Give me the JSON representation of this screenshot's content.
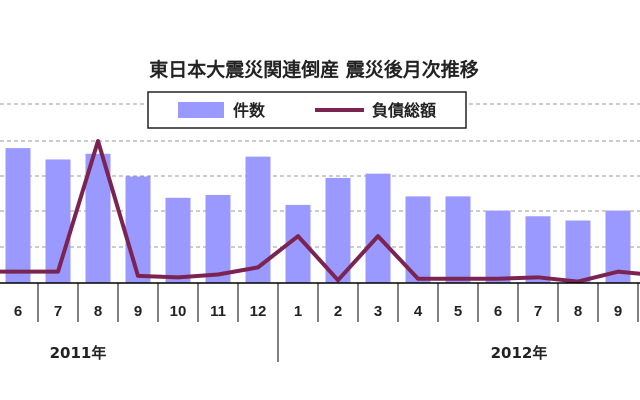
{
  "chart_data": {
    "type": "bar",
    "title": "東日本大震災関連倒産 震災後月次推移",
    "categories": [
      "6",
      "7",
      "8",
      "9",
      "10",
      "11",
      "12",
      "1",
      "2",
      "3",
      "4",
      "5",
      "6",
      "7",
      "8",
      "9"
    ],
    "year_groups": [
      {
        "label": "2011年",
        "start": 0,
        "count": 7
      },
      {
        "label": "2012年",
        "start": 7,
        "count": 9
      }
    ],
    "series": [
      {
        "name": "件数",
        "kind": "bar",
        "color": "#9999ff",
        "values": [
          95,
          87,
          91,
          75,
          60,
          62,
          89,
          55,
          74,
          77,
          61,
          61,
          51,
          47,
          44,
          51
        ]
      },
      {
        "name": "負債総額",
        "kind": "line",
        "color": "#7b2452",
        "values": [
          8,
          8,
          100,
          5,
          4,
          6,
          11,
          33,
          2,
          33,
          3,
          3,
          3,
          4,
          1,
          8
        ]
      }
    ],
    "ylim": [
      0,
      100
    ],
    "grid": true,
    "legend": "top-center",
    "colors": {
      "bar": "#9999ff",
      "line": "#7b2452",
      "grid": "#999999",
      "axis": "#000000",
      "text": "#222222"
    }
  }
}
